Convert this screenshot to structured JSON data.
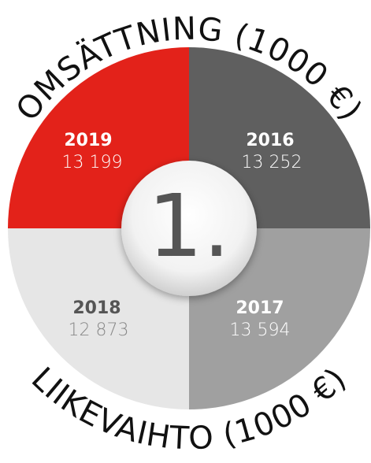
{
  "top_title": "OMSÄTTNING (1000 €)",
  "bottom_title": "LIIKEVAIHTO (1000 €)",
  "center_label": "1.",
  "quadrants": [
    {
      "year": "2019",
      "value": "13 199"
    },
    {
      "year": "2016",
      "value": "13 252"
    },
    {
      "year": "2017",
      "value": "13 594"
    },
    {
      "year": "2018",
      "value": "12 873"
    }
  ]
}
